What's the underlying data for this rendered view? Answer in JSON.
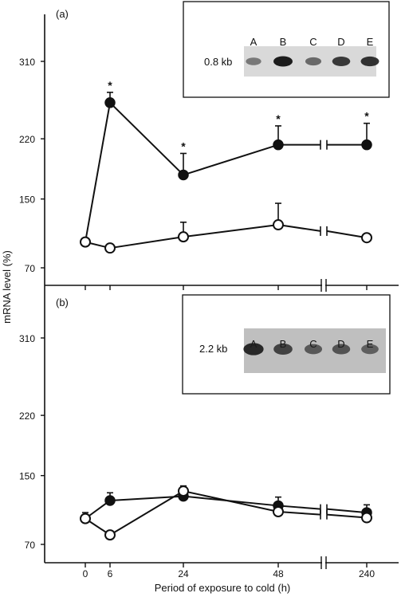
{
  "panels_text": {
    "a": "(a)",
    "b": "(b)"
  },
  "ylabel": "mRNA level (%)",
  "xlabel": "Period of exposure to cold (h)",
  "colors": {
    "ink": "#111111",
    "band": "#1c1c1c"
  },
  "chart_data": [
    {
      "type": "line",
      "panel": "(a)",
      "x": [
        0,
        6,
        24,
        48,
        240
      ],
      "x_tick_labels": [
        "0",
        "6",
        "24",
        "48",
        "240"
      ],
      "axis_break_between": [
        48,
        240
      ],
      "y_ticks": [
        70,
        150,
        220,
        310
      ],
      "ylim": [
        55,
        350
      ],
      "series": [
        {
          "marker": "filled-circle",
          "values": [
            100,
            262,
            178,
            213,
            213
          ],
          "error": [
            0,
            12,
            25,
            22,
            25
          ],
          "significant": [
            false,
            true,
            true,
            true,
            true
          ]
        },
        {
          "marker": "open-circle",
          "values": [
            100,
            93,
            106,
            120,
            105
          ],
          "error": [
            0,
            0,
            17,
            25,
            0
          ],
          "significant": [
            false,
            false,
            false,
            false,
            false
          ]
        }
      ],
      "significance_marker": "*",
      "inset": {
        "size_label": "0.8 kb",
        "lanes": [
          "A",
          "B",
          "C",
          "D",
          "E"
        ],
        "band_intensity": [
          0.35,
          1.0,
          0.45,
          0.8,
          0.85
        ]
      }
    },
    {
      "type": "line",
      "panel": "(b)",
      "x": [
        0,
        6,
        24,
        48,
        240
      ],
      "x_tick_labels": [
        "0",
        "6",
        "24",
        "48",
        "240"
      ],
      "axis_break_between": [
        48,
        240
      ],
      "y_ticks": [
        70,
        150,
        220,
        310
      ],
      "ylim": [
        55,
        350
      ],
      "series": [
        {
          "marker": "filled-circle",
          "values": [
            100,
            121,
            126,
            115,
            107
          ],
          "error": [
            7,
            9,
            0,
            10,
            9
          ],
          "significant": [
            false,
            false,
            false,
            false,
            false
          ]
        },
        {
          "marker": "open-circle",
          "values": [
            100,
            81,
            132,
            108,
            101
          ],
          "error": [
            0,
            0,
            6,
            0,
            0
          ],
          "significant": [
            false,
            false,
            false,
            false,
            false
          ]
        }
      ],
      "inset": {
        "size_label": "2.2 kb",
        "lanes": [
          "A",
          "B",
          "C",
          "D",
          "E"
        ],
        "band_intensity": [
          0.9,
          0.7,
          0.5,
          0.55,
          0.45
        ]
      }
    }
  ]
}
